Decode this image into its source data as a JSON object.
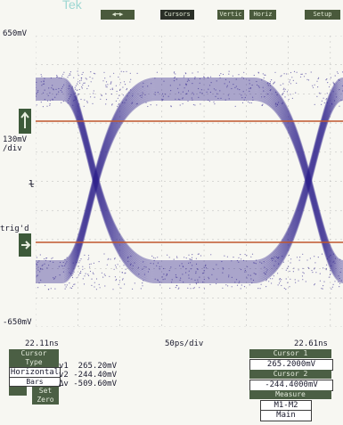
{
  "brand": "Tek",
  "topbar": {
    "arrows_label": "◀━▶",
    "buttons": [
      "Cursors",
      "Vertic",
      "Horiz",
      "Setup"
    ]
  },
  "y_axis": {
    "top": "650mV",
    "scale": "130mV",
    "scale_unit": "/div",
    "trig": "trig'd",
    "bottom": "-650mV"
  },
  "x_axis": {
    "left": "22.11ns",
    "center": "50ps/div",
    "right": "22.61ns"
  },
  "readout": {
    "left_panel": {
      "title": "Cursor",
      "type_label": "Type",
      "type_value": "Horizontal",
      "type_sub": "Bars",
      "set_label": "Set",
      "zero_label": "Zero",
      "v1": "v1  265.20mV",
      "v2": "v2 -244.40mV",
      "dv": "Δv -509.60mV"
    },
    "right_panel": {
      "title": "Cursor 1",
      "cursor1": "265.2000mV",
      "title2": "Cursor 2",
      "cursor2": "-244.4000mV",
      "measure_label": "Measure",
      "mode": "M1-M2",
      "source": "Main"
    }
  },
  "colors": {
    "trace": "#2d1f8c",
    "cursor_line": "#c0562c",
    "grid": "#b7b7b7"
  }
}
